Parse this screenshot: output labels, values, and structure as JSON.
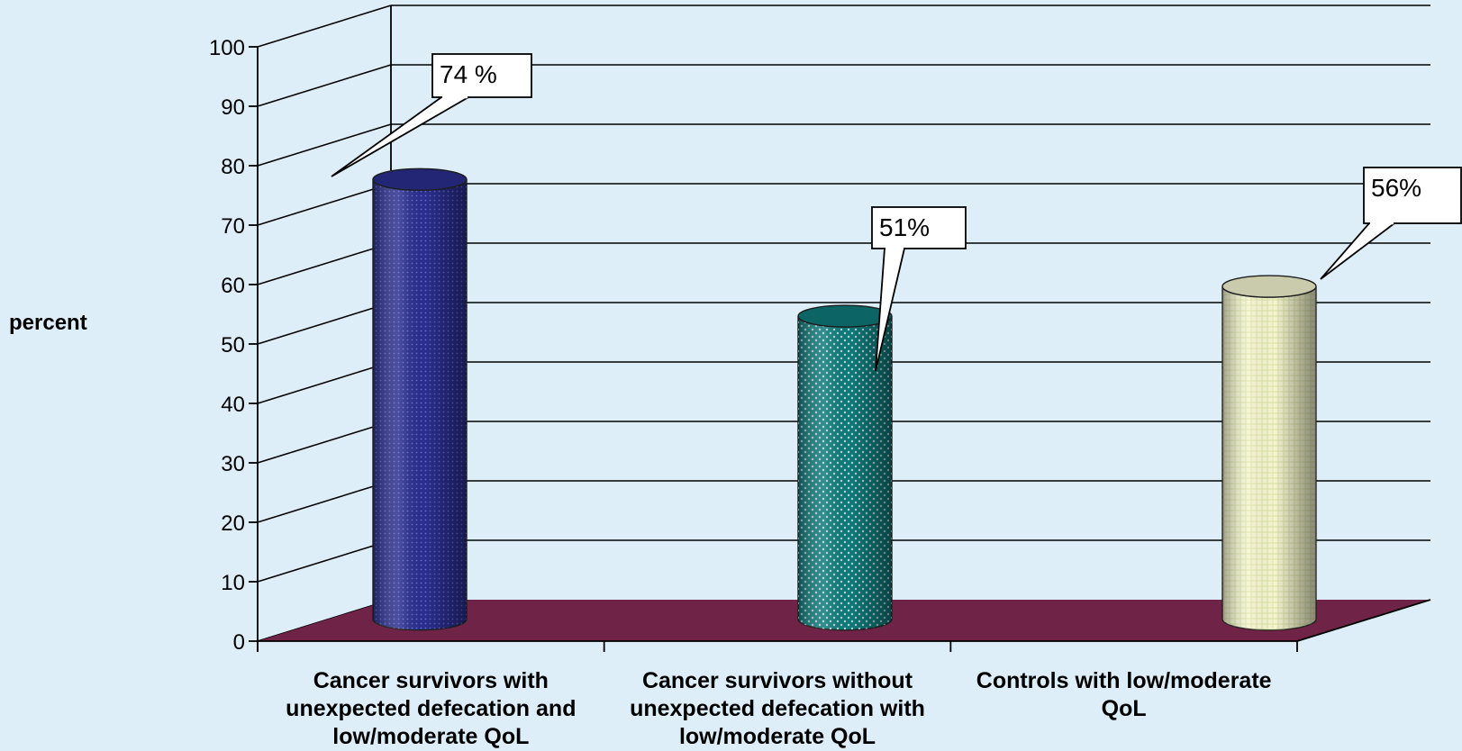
{
  "chart_data": {
    "type": "bar",
    "ylabel": "percent",
    "xlabel": "",
    "ylim": [
      0,
      100
    ],
    "yticks": [
      "0",
      "10",
      "20",
      "30",
      "40",
      "50",
      "60",
      "70",
      "80",
      "90",
      "100"
    ],
    "categories": [
      "Cancer survivors with unexpected defecation and low/moderate QoL",
      "Cancer survivors without unexpected defecation with low/moderate QoL",
      "Controls with low/moderate QoL"
    ],
    "category_lines": [
      [
        "Cancer survivors with",
        "unexpected defecation and",
        "low/moderate QoL"
      ],
      [
        "Cancer survivors without",
        "unexpected defecation with",
        "low/moderate QoL"
      ],
      [
        "Controls with low/moderate",
        "QoL"
      ]
    ],
    "values": [
      74,
      51,
      56
    ],
    "data_labels": [
      "74 %",
      "51%",
      "56%"
    ],
    "colors": [
      "#2b2e8f",
      "#0f7a7a",
      "#f7f7d2"
    ],
    "floor_color": "#6f2346",
    "background": "#ddeef9",
    "grid": true,
    "legend": "none"
  }
}
